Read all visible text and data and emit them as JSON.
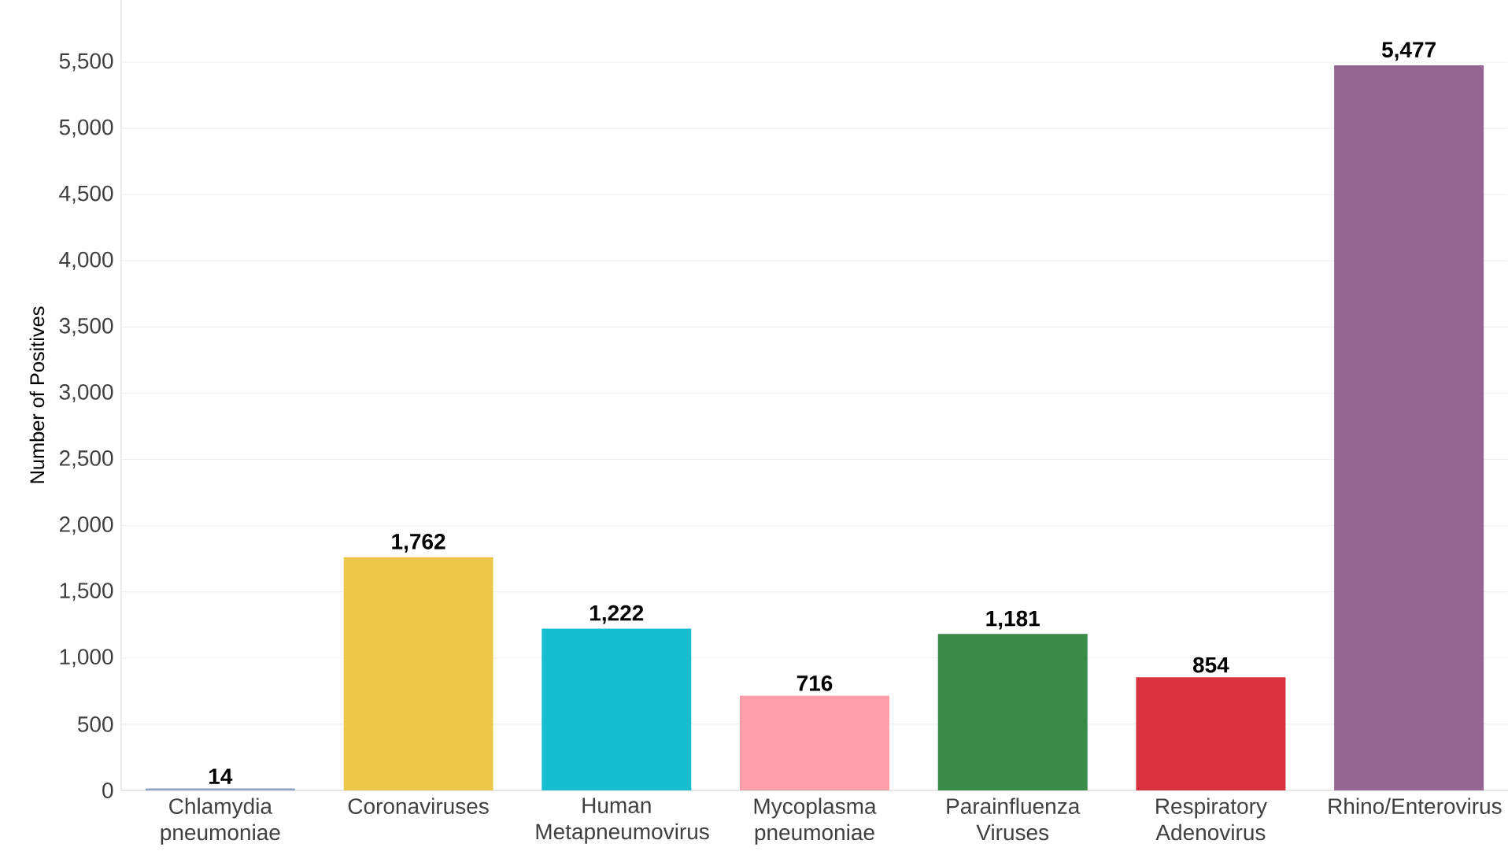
{
  "chart_data": {
    "type": "bar",
    "ylabel": "Number of Positives",
    "categories": [
      "Chlamydia pneumoniae",
      "Coronaviruses",
      "Human Metapneumovirus",
      "Mycoplasma pneumoniae",
      "Parainfluenza Viruses",
      "Respiratory Adenovirus",
      "Rhino/Enterovirus"
    ],
    "values": [
      14,
      1762,
      1222,
      716,
      1181,
      854,
      5477
    ],
    "colors": [
      "#8fa0c4",
      "#ebc84a",
      "#17becf",
      "#fe9ea8",
      "#3a8a48",
      "#d9323f",
      "#936590"
    ],
    "value_labels": [
      "14",
      "1,762",
      "1,222",
      "716",
      "1,181",
      "854",
      "5,477"
    ],
    "ylim": [
      0,
      5970
    ],
    "yticks": [
      0,
      500,
      {
        "value": 1000,
        "label": "1,000"
      },
      {
        "value": 1500,
        "label": "1,500"
      },
      {
        "value": 2000,
        "label": "2,000"
      },
      {
        "value": 2500,
        "label": "2,500"
      },
      {
        "value": 3000,
        "label": "3,000"
      },
      {
        "value": 3500,
        "label": "3,500"
      },
      {
        "value": 4000,
        "label": "4,000"
      },
      {
        "value": 4500,
        "label": "4,500"
      },
      {
        "value": 5000,
        "label": "5,000"
      },
      {
        "value": 5500,
        "label": "5,500"
      }
    ],
    "grid": "y"
  }
}
